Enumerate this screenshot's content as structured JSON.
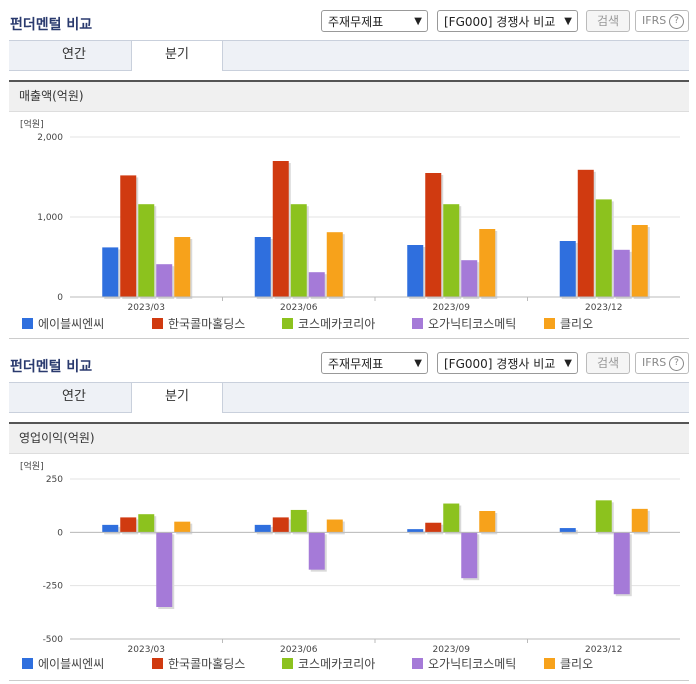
{
  "sections": [
    {
      "title": "펀더멘털 비교",
      "select_type": "주재무제표",
      "select_peer": "[FG000] 경쟁사 비교",
      "search_label": "검색",
      "ifrs_label": "IFRS",
      "tabs": [
        "연간",
        "분기"
      ],
      "active_tab": "분기",
      "subheader": "매출액(억원)"
    },
    {
      "title": "펀더멘털 비교",
      "select_type": "주재무제표",
      "select_peer": "[FG000] 경쟁사 비교",
      "search_label": "검색",
      "ifrs_label": "IFRS",
      "tabs": [
        "연간",
        "분기"
      ],
      "active_tab": "분기",
      "subheader": "영업이익(억원)"
    }
  ],
  "chart_data": [
    {
      "type": "bar",
      "unit_label": "[억원]",
      "categories": [
        "2023/03",
        "2023/06",
        "2023/09",
        "2023/12"
      ],
      "ylim": [
        0,
        2000
      ],
      "yticks": [
        0,
        1000,
        2000
      ],
      "ytick_labels": [
        "0",
        "1,000",
        "2,000"
      ],
      "grid": true,
      "legend_position": "bottom",
      "series": [
        {
          "name": "에이블씨엔씨",
          "color": "#2f6fde",
          "values": [
            620,
            750,
            650,
            700
          ]
        },
        {
          "name": "한국콜마홀딩스",
          "color": "#d03a10",
          "values": [
            1520,
            1700,
            1550,
            1590
          ]
        },
        {
          "name": "코스메카코리아",
          "color": "#8cc21e",
          "values": [
            1160,
            1160,
            1160,
            1220
          ]
        },
        {
          "name": "오가닉티코스메틱",
          "color": "#a57ad8",
          "values": [
            410,
            310,
            460,
            590
          ]
        },
        {
          "name": "클리오",
          "color": "#f7a21b",
          "values": [
            750,
            810,
            850,
            900
          ]
        }
      ]
    },
    {
      "type": "bar",
      "unit_label": "[억원]",
      "categories": [
        "2023/03",
        "2023/06",
        "2023/09",
        "2023/12"
      ],
      "ylim": [
        -500,
        250
      ],
      "yticks": [
        -500,
        -250,
        0,
        250
      ],
      "ytick_labels": [
        "-500",
        "-250",
        "0",
        "250"
      ],
      "grid": true,
      "legend_position": "bottom",
      "series": [
        {
          "name": "에이블씨엔씨",
          "color": "#2f6fde",
          "values": [
            35,
            35,
            15,
            20
          ]
        },
        {
          "name": "한국콜마홀딩스",
          "color": "#d03a10",
          "values": [
            70,
            70,
            45,
            0
          ]
        },
        {
          "name": "코스메카코리아",
          "color": "#8cc21e",
          "values": [
            85,
            105,
            135,
            150
          ]
        },
        {
          "name": "오가닉티코스메틱",
          "color": "#a57ad8",
          "values": [
            -350,
            -175,
            -215,
            -290
          ]
        },
        {
          "name": "클리오",
          "color": "#f7a21b",
          "values": [
            50,
            60,
            100,
            110
          ]
        }
      ]
    }
  ]
}
